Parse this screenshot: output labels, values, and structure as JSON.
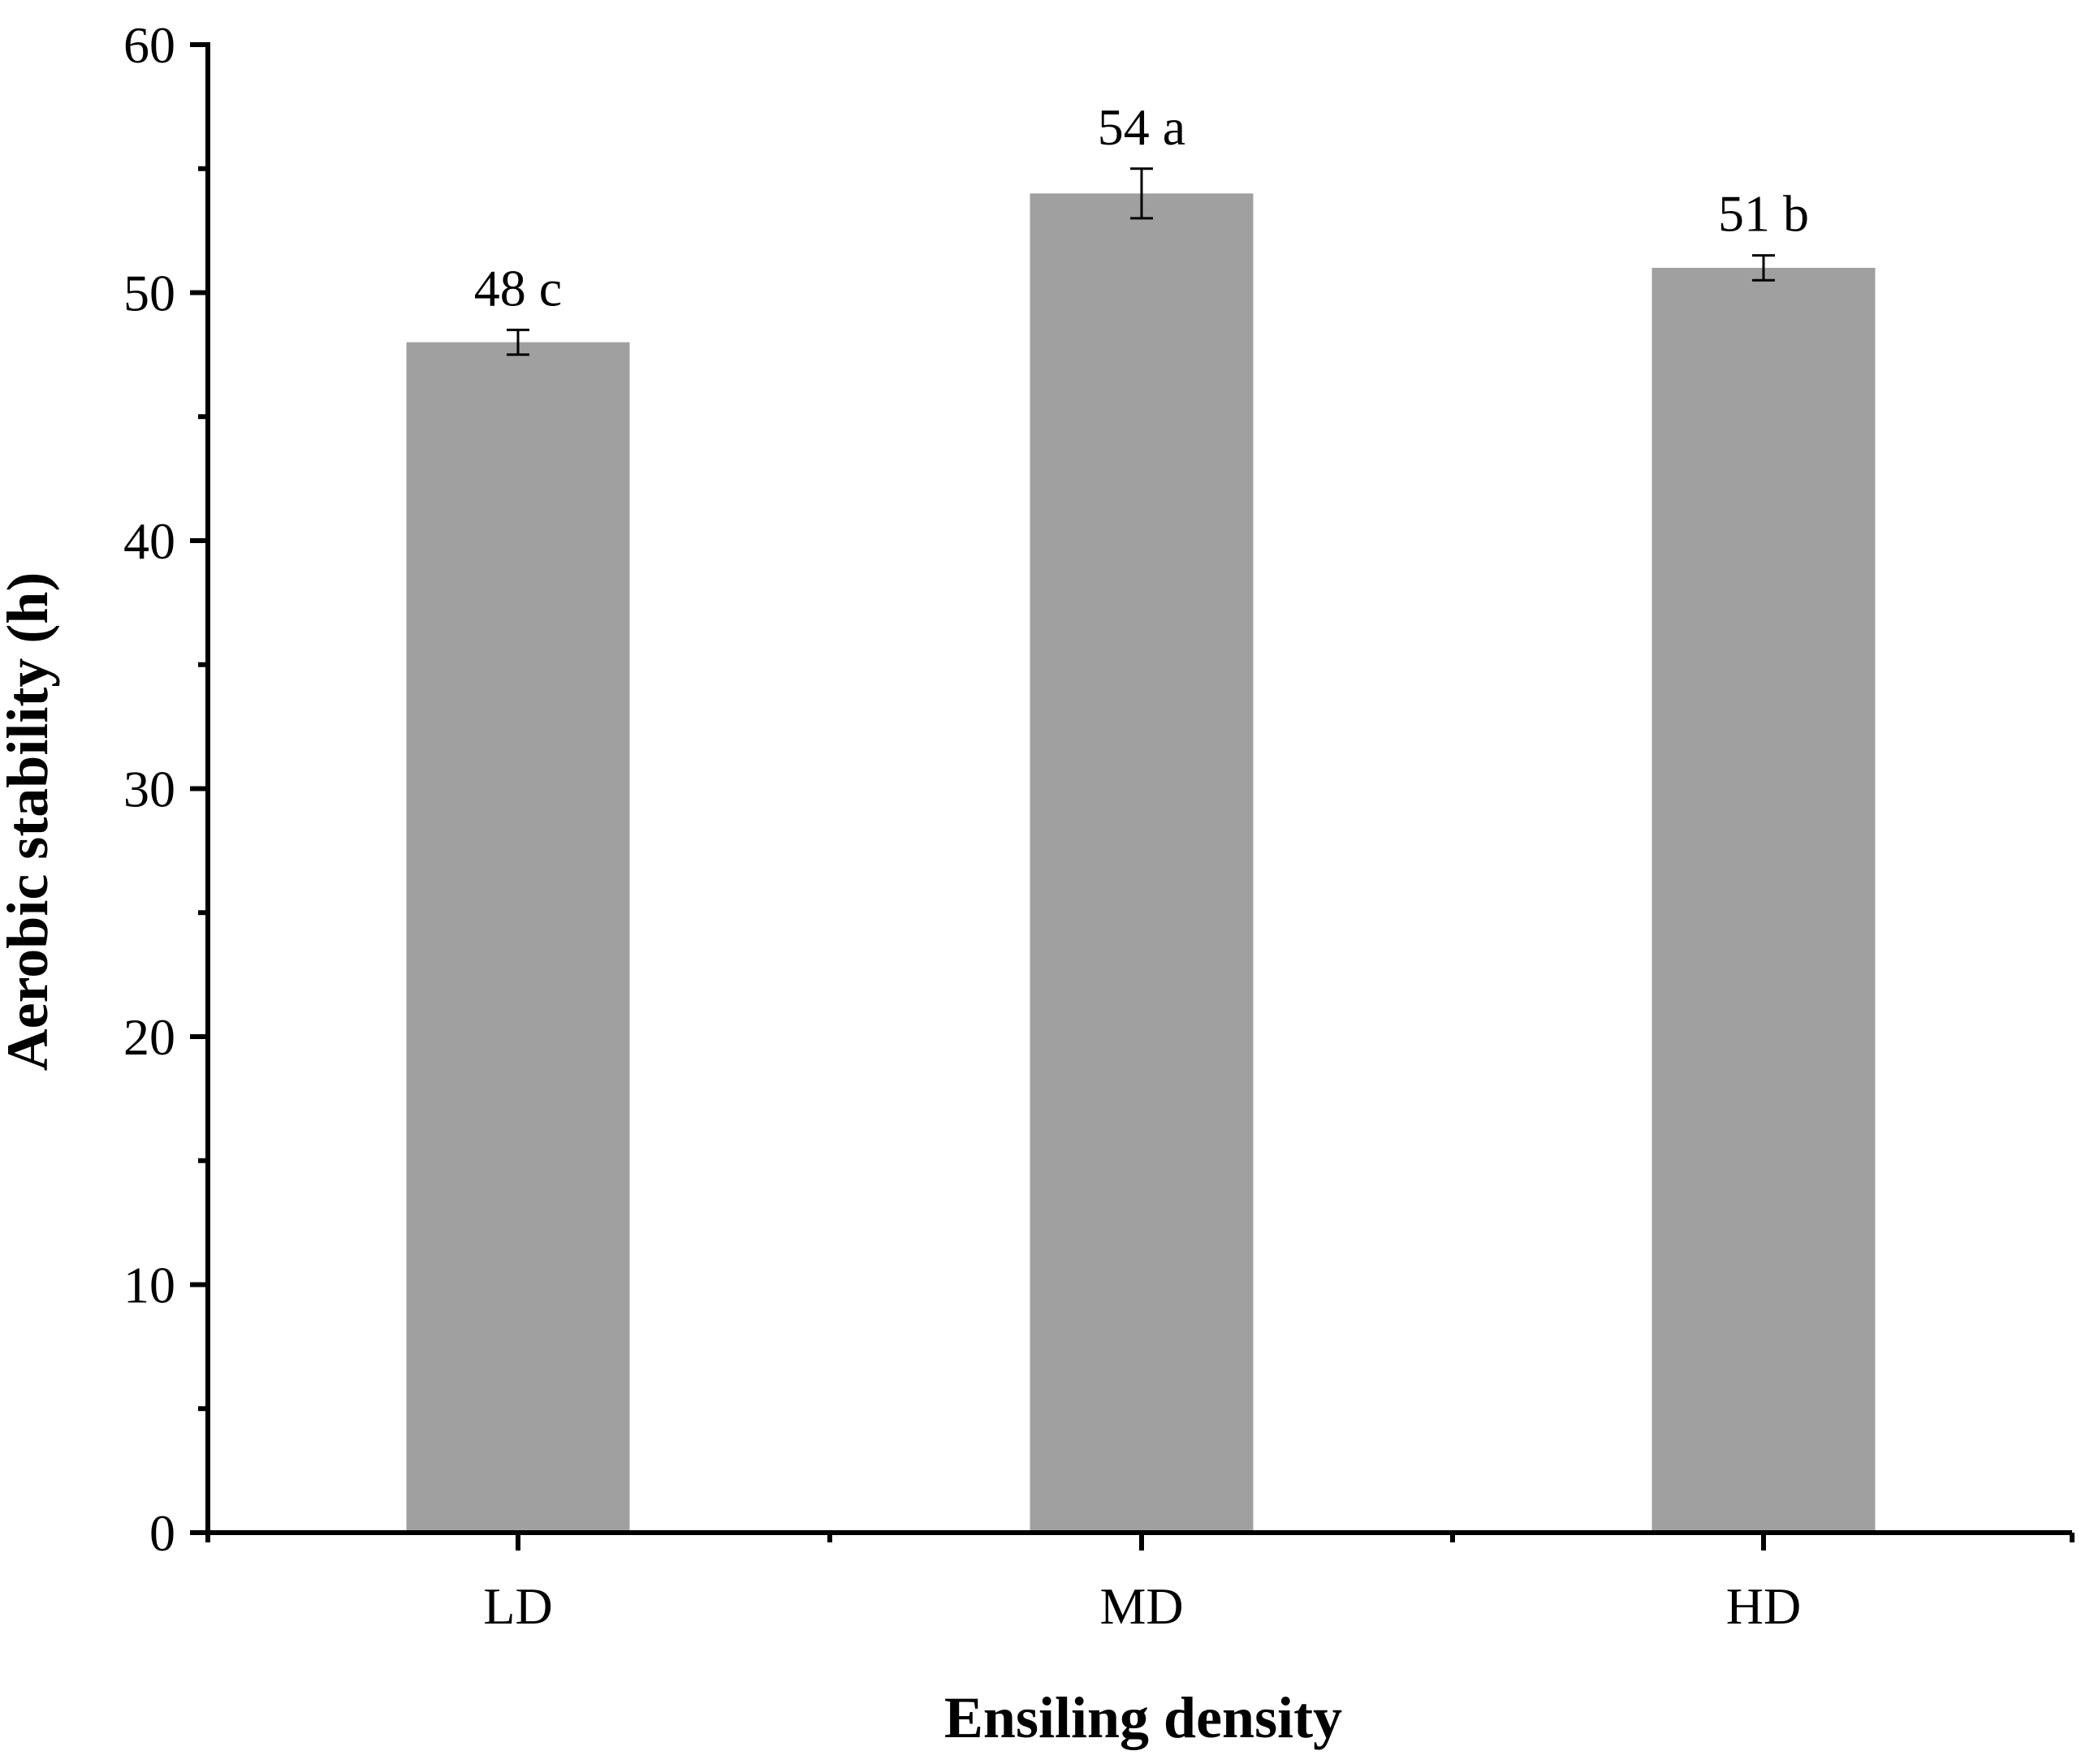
{
  "chart_data": {
    "type": "bar",
    "title": "",
    "xlabel": "Ensiling density",
    "ylabel": "Aerobic stability (h)",
    "categories": [
      "LD",
      "MD",
      "HD"
    ],
    "values": [
      48,
      54,
      51
    ],
    "errors": [
      0.5,
      1.0,
      0.5
    ],
    "data_labels": [
      "48 c",
      "54 a",
      "51 b"
    ],
    "ylim": [
      0,
      60
    ],
    "yticks": [
      0,
      10,
      20,
      30,
      40,
      50,
      60
    ],
    "ytick_labels": [
      "0",
      "10",
      "20",
      "30",
      "40",
      "50",
      "60"
    ],
    "minor_ytick_step": 5,
    "grid": false,
    "legend": "none",
    "colors": {
      "bar": "#a0a0a0",
      "axis": "#000000",
      "error_bar": "#000000",
      "background": "#ffffff"
    }
  }
}
